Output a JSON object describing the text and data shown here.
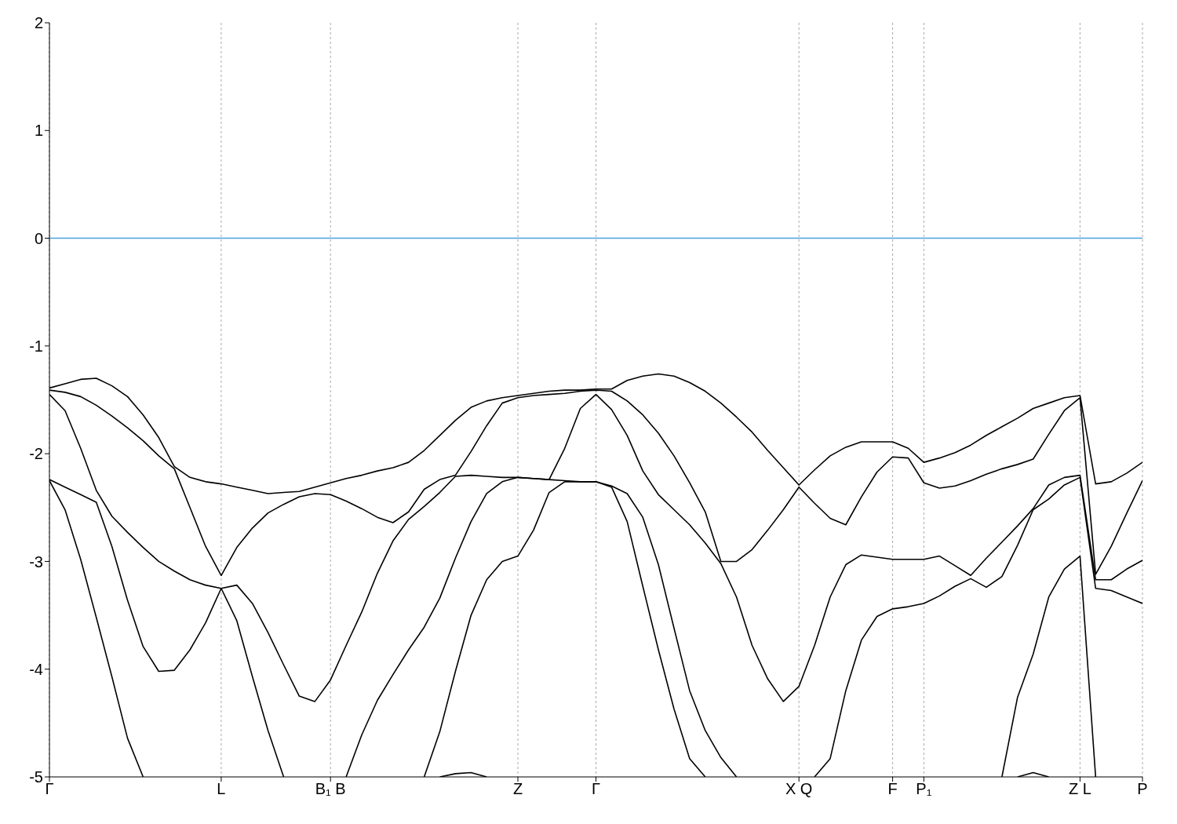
{
  "chart_data": {
    "type": "line",
    "categories": [
      "Γ",
      null,
      null,
      null,
      null,
      null,
      null,
      null,
      null,
      null,
      null,
      "L",
      null,
      null,
      null,
      null,
      null,
      null,
      "B₁ B",
      null,
      null,
      null,
      null,
      null,
      null,
      null,
      null,
      null,
      null,
      null,
      "Z",
      null,
      null,
      null,
      null,
      "Γ",
      null,
      null,
      null,
      null,
      null,
      null,
      null,
      null,
      null,
      null,
      null,
      null,
      "X Q",
      null,
      null,
      null,
      null,
      null,
      "F",
      null,
      "P₁",
      null,
      null,
      null,
      null,
      null,
      null,
      null,
      null,
      null,
      "Z L",
      null,
      null,
      null,
      "P"
    ],
    "ylim": [
      -5,
      2
    ],
    "yticks": [
      -5,
      -4,
      -3,
      -2,
      -1,
      0,
      1,
      2
    ],
    "grid": "x",
    "line_style": "solid",
    "ref_lines": [
      {
        "axis": "y",
        "value": 0,
        "color": "#4aa3df"
      }
    ],
    "series": [
      {
        "color": "#000000",
        "values": [
          -1.39,
          -1.35,
          -1.31,
          -1.3,
          -1.37,
          -1.47,
          -1.64,
          -1.85,
          -2.12,
          -2.22,
          -2.26,
          -2.28,
          -2.31,
          -2.34,
          -2.37,
          -2.36,
          -2.35,
          -2.31,
          -2.27,
          -2.23,
          -2.2,
          -2.16,
          -2.13,
          -2.08,
          -1.97,
          -1.83,
          -1.69,
          -1.57,
          -1.51,
          -1.48,
          -1.46,
          -1.44,
          -1.42,
          -1.41,
          -1.41,
          -1.4,
          -1.4,
          -1.32,
          -1.28,
          -1.26,
          -1.28,
          -1.34,
          -1.42,
          -1.53,
          -1.66,
          -1.8,
          -1.97,
          -2.13,
          -2.29,
          -2.15,
          -2.02,
          -1.94,
          -1.89,
          -1.89,
          -1.89,
          -1.95,
          -2.08,
          -2.04,
          -1.99,
          -1.92,
          -1.83,
          -1.75,
          -1.67,
          -1.58,
          -1.53,
          -1.48,
          -1.46,
          -2.28,
          -2.26,
          -2.18,
          -2.08
        ]
      },
      {
        "color": "#000000",
        "values": [
          -1.41,
          -1.43,
          -1.47,
          -1.55,
          -1.65,
          -1.76,
          -1.88,
          -2.02,
          -2.14,
          -2.5,
          -2.86,
          -3.13,
          -2.87,
          -2.69,
          -2.55,
          -2.47,
          -2.4,
          -2.37,
          -2.38,
          -2.44,
          -2.51,
          -2.59,
          -2.64,
          -2.54,
          -2.33,
          -2.24,
          -2.2,
          -1.98,
          -1.74,
          -1.53,
          -1.48,
          -1.46,
          -1.45,
          -1.44,
          -1.42,
          -1.41,
          -1.42,
          -1.51,
          -1.64,
          -1.81,
          -2.02,
          -2.27,
          -2.54,
          -3.0,
          -3.0,
          -2.89,
          -2.71,
          -2.52,
          -2.31,
          -2.46,
          -2.6,
          -2.66,
          -2.4,
          -2.17,
          -2.03,
          -2.04,
          -2.27,
          -2.32,
          -2.3,
          -2.25,
          -2.19,
          -2.14,
          -2.1,
          -2.05,
          -1.82,
          -1.6,
          -1.48,
          -3.12,
          -2.86,
          -2.55,
          -2.25
        ]
      },
      {
        "color": "#000000",
        "values": [
          -1.45,
          -1.6,
          -1.95,
          -2.34,
          -2.58,
          -2.73,
          -2.87,
          -3.0,
          -3.09,
          -3.17,
          -3.22,
          -3.25,
          -3.22,
          -3.39,
          -3.66,
          -3.96,
          -4.25,
          -4.3,
          -4.1,
          -3.78,
          -3.47,
          -3.11,
          -2.81,
          -2.61,
          -2.49,
          -2.36,
          -2.21,
          -2.2,
          -2.21,
          -2.22,
          -2.22,
          -2.23,
          -2.24,
          -1.95,
          -1.58,
          -1.45,
          -1.59,
          -1.83,
          -2.16,
          -2.38,
          -2.52,
          -2.66,
          -2.83,
          -3.02,
          -3.33,
          -3.78,
          -4.09,
          -4.3,
          -4.16,
          -3.78,
          -3.33,
          -3.03,
          -2.94,
          -2.96,
          -2.98,
          -2.98,
          -2.98,
          -2.95,
          -3.04,
          -3.13,
          -2.97,
          -2.82,
          -2.67,
          -2.51,
          -2.29,
          -2.22,
          -2.2,
          -3.17,
          -3.17,
          -3.07,
          -2.99
        ]
      },
      {
        "color": "#000000",
        "values": [
          -2.24,
          -2.31,
          -2.38,
          -2.45,
          -2.86,
          -3.36,
          -3.79,
          -4.02,
          -4.01,
          -3.82,
          -3.57,
          -3.25,
          -3.55,
          -4.07,
          -4.57,
          -5,
          null,
          null,
          null,
          -5,
          -4.61,
          -4.29,
          -4.05,
          -3.82,
          -3.61,
          -3.34,
          -2.97,
          -2.63,
          -2.37,
          -2.26,
          -2.22,
          -2.23,
          -2.24,
          -2.25,
          -2.26,
          -2.26,
          -2.3,
          -2.37,
          -2.59,
          -3.03,
          -3.62,
          -4.2,
          -4.57,
          -4.82,
          -5,
          null,
          null,
          null,
          null,
          -5,
          -4.83,
          -4.2,
          -3.73,
          -3.51,
          -3.44,
          -3.42,
          -3.39,
          -3.32,
          -3.23,
          -3.16,
          -3.24,
          -3.14,
          -2.85,
          -2.52,
          -2.42,
          -2.29,
          -2.22,
          -3.25,
          -3.27,
          -3.33,
          -3.39
        ]
      },
      {
        "color": "#000000",
        "values": [
          -2.25,
          -2.52,
          -2.98,
          -3.52,
          -4.07,
          -4.64,
          -5,
          null,
          null,
          null,
          null,
          null,
          null,
          null,
          null,
          null,
          null,
          null,
          null,
          null,
          null,
          null,
          null,
          null,
          -5,
          -4.58,
          -4.02,
          -3.5,
          -3.17,
          -3.0,
          -2.95,
          -2.71,
          -2.36,
          -2.26,
          -2.26,
          -2.26,
          -2.31,
          -2.63,
          -3.23,
          -3.82,
          -4.37,
          -4.83,
          -5,
          null,
          null,
          null,
          null,
          null,
          null,
          null,
          null,
          null,
          null,
          null,
          null,
          null,
          null,
          null,
          null,
          null,
          null,
          -5,
          -4.26,
          -3.86,
          -3.33,
          -3.07,
          -2.95,
          -5,
          null,
          null,
          null
        ]
      },
      {
        "color": "#000000",
        "values": [
          null,
          null,
          null,
          null,
          null,
          null,
          null,
          null,
          null,
          null,
          null,
          null,
          null,
          null,
          null,
          null,
          null,
          null,
          null,
          null,
          null,
          null,
          null,
          null,
          null,
          -5,
          -4.97,
          -4.96,
          -5,
          null,
          null,
          null,
          null,
          null,
          null,
          null,
          null,
          null,
          null,
          null,
          null,
          null,
          null,
          null,
          null,
          null,
          null,
          null,
          null,
          null,
          null,
          null,
          null,
          null,
          null,
          null,
          null,
          null,
          null,
          null,
          null,
          null,
          -5,
          -4.96,
          -5,
          null,
          null,
          null,
          null,
          null,
          null
        ]
      }
    ]
  }
}
